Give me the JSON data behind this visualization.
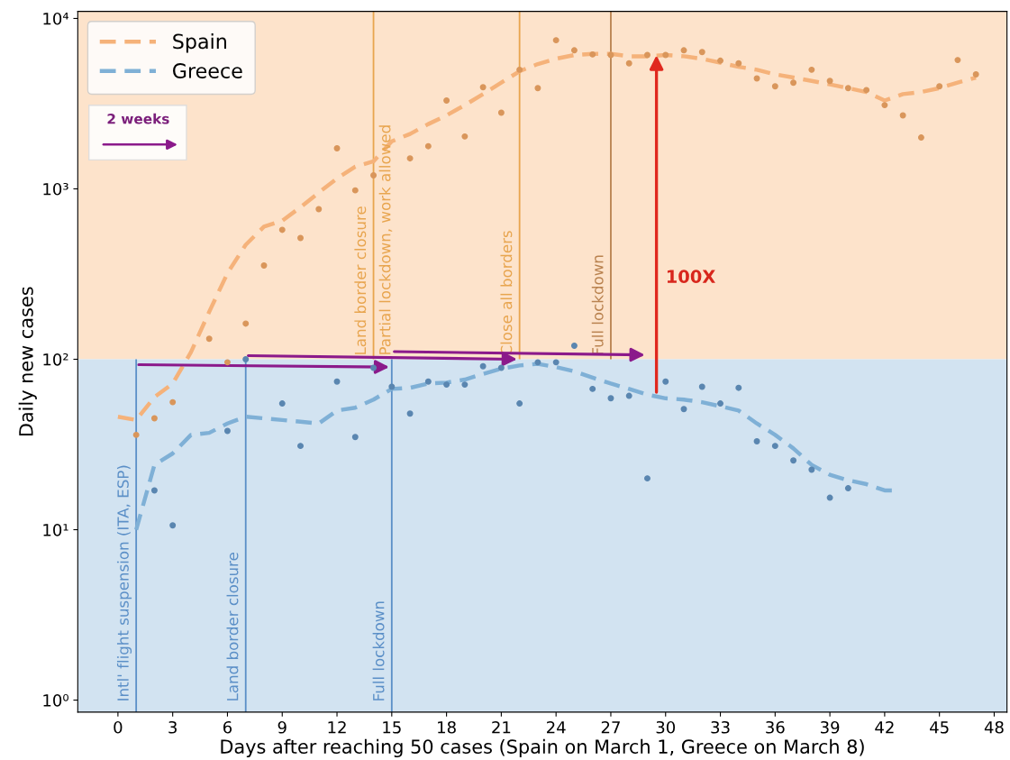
{
  "chart_data": {
    "type": "line",
    "xlabel": "Days after reaching 50 cases (Spain on March 1, Greece on March 8)",
    "ylabel": "Daily new cases",
    "log": "y",
    "xlim": [
      -2.2,
      48.7
    ],
    "ylim": [
      0.85,
      11000
    ],
    "xticks": [
      0,
      3,
      6,
      9,
      12,
      15,
      18,
      21,
      24,
      27,
      30,
      33,
      36,
      39,
      42,
      45,
      48
    ],
    "yticks": [
      {
        "value": 1,
        "label": "10⁰"
      },
      {
        "value": 10,
        "label": "10¹"
      },
      {
        "value": 100,
        "label": "10²"
      },
      {
        "value": 1000,
        "label": "10³"
      },
      {
        "value": 10000,
        "label": "10⁴"
      }
    ],
    "grid": false,
    "legend": "top left",
    "line_style": "dashed",
    "series": [
      {
        "name": "Spain",
        "color": "#f5b27a",
        "x": [
          0,
          1,
          2,
          3,
          4,
          5,
          6,
          7,
          8,
          9,
          10,
          11,
          12,
          13,
          14,
          15,
          16,
          17,
          18,
          19,
          20,
          21,
          22,
          23,
          24,
          25,
          26,
          27,
          28,
          29,
          30,
          31,
          32,
          33,
          34,
          35,
          36,
          37,
          38,
          39,
          40,
          41,
          42,
          43,
          44,
          45,
          46,
          47
        ],
        "values": [
          46,
          44,
          60,
          72,
          110,
          190,
          320,
          470,
          600,
          650,
          780,
          950,
          1150,
          1350,
          1450,
          1900,
          2100,
          2400,
          2700,
          3100,
          3600,
          4200,
          4900,
          5400,
          5800,
          6100,
          6200,
          6200,
          6000,
          6000,
          6100,
          6000,
          5800,
          5500,
          5200,
          5000,
          4700,
          4500,
          4300,
          4100,
          3900,
          3700,
          3300,
          3600,
          3700,
          3900,
          4200,
          4500
        ]
      },
      {
        "type": "scatter",
        "color": "#d9965b",
        "marker": "circle",
        "x": [
          1,
          2,
          3,
          5,
          6,
          7,
          8,
          9,
          10,
          11,
          12,
          13,
          14,
          16,
          17,
          18,
          19,
          20,
          21,
          22,
          23,
          24,
          25,
          26,
          27,
          28,
          29,
          30,
          31,
          32,
          33,
          34,
          35,
          36,
          37,
          38,
          39,
          40,
          41,
          42,
          43,
          44,
          45,
          46,
          47
        ],
        "values": [
          36,
          45,
          56,
          132,
          96,
          162,
          355,
          575,
          515,
          760,
          1730,
          980,
          1200,
          1510,
          1780,
          3300,
          2030,
          3950,
          2800,
          5000,
          3900,
          7450,
          6500,
          6150,
          6100,
          5450,
          6100,
          6100,
          6500,
          6350,
          5650,
          5450,
          4450,
          4000,
          4200,
          5000,
          4300,
          3900,
          3800,
          3100,
          2700,
          2000,
          4000,
          5700,
          4700
        ]
      },
      {
        "name": "Greece",
        "color": "#7fb0d6",
        "x": [
          1,
          2,
          3,
          4,
          5,
          6,
          7,
          8,
          9,
          10,
          11,
          12,
          13,
          14,
          15,
          16,
          17,
          18,
          19,
          20,
          21,
          22,
          23,
          24,
          25,
          26,
          27,
          28,
          29,
          30,
          31,
          32,
          33,
          34,
          35,
          36,
          37,
          38,
          39,
          40,
          41,
          42,
          42.5
        ],
        "values": [
          10,
          24,
          28,
          36,
          37,
          42,
          46,
          45,
          44,
          43,
          42,
          50,
          52,
          58,
          67,
          68,
          72,
          73,
          76,
          82,
          88,
          92,
          94,
          90,
          85,
          78,
          72,
          67,
          62,
          59,
          58,
          56,
          53,
          50,
          42,
          36,
          30,
          24,
          21,
          19.5,
          18.5,
          17,
          17
        ]
      },
      {
        "type": "scatter",
        "color": "#5a86b0",
        "marker": "circle",
        "x": [
          2,
          3,
          6,
          7,
          9,
          10,
          12,
          13,
          14,
          15,
          16,
          17,
          18,
          19,
          20,
          21,
          22,
          23,
          24,
          25,
          26,
          27,
          28,
          29,
          30,
          31,
          32,
          33,
          34,
          35,
          36,
          37,
          38,
          39,
          40
        ],
        "values": [
          17,
          10.6,
          38,
          100,
          55,
          31,
          74,
          35,
          89,
          69,
          48,
          74,
          71,
          71,
          91,
          89,
          55,
          96,
          96,
          120,
          67,
          59,
          61,
          20,
          74,
          51,
          69,
          55,
          68,
          33,
          31,
          25.5,
          22.5,
          15.4,
          17.5
        ]
      }
    ],
    "bands": [
      {
        "axis": "y",
        "from": 100,
        "to": 11000,
        "color": "#fde3cb"
      },
      {
        "axis": "y",
        "from": 0.85,
        "to": 100,
        "color": "#d2e3f1"
      }
    ],
    "ref_lines": [
      {
        "axis": "x",
        "value": 1,
        "label": "Intl' flight suspension (ITA, ESP)",
        "color": "#5b8fc7"
      },
      {
        "axis": "x",
        "value": 7,
        "label": "Land border closure",
        "color": "#5b8fc7"
      },
      {
        "axis": "x",
        "value": 15,
        "label": "Full lockdown",
        "color": "#5b8fc7"
      },
      {
        "axis": "x",
        "value": 14,
        "label": "Land border closure",
        "color": "#e8a54f"
      },
      {
        "axis": "x",
        "value": 22,
        "label": "Close all borders",
        "color": "#e8a54f"
      },
      {
        "axis": "x",
        "value": 27,
        "label": "Full lockdown",
        "color": "#b9824f"
      }
    ],
    "annotations": [
      "2 weeks",
      "100X",
      {
        "text": "Partial lockdown, work allowed",
        "x": 14,
        "y": 100
      }
    ]
  }
}
